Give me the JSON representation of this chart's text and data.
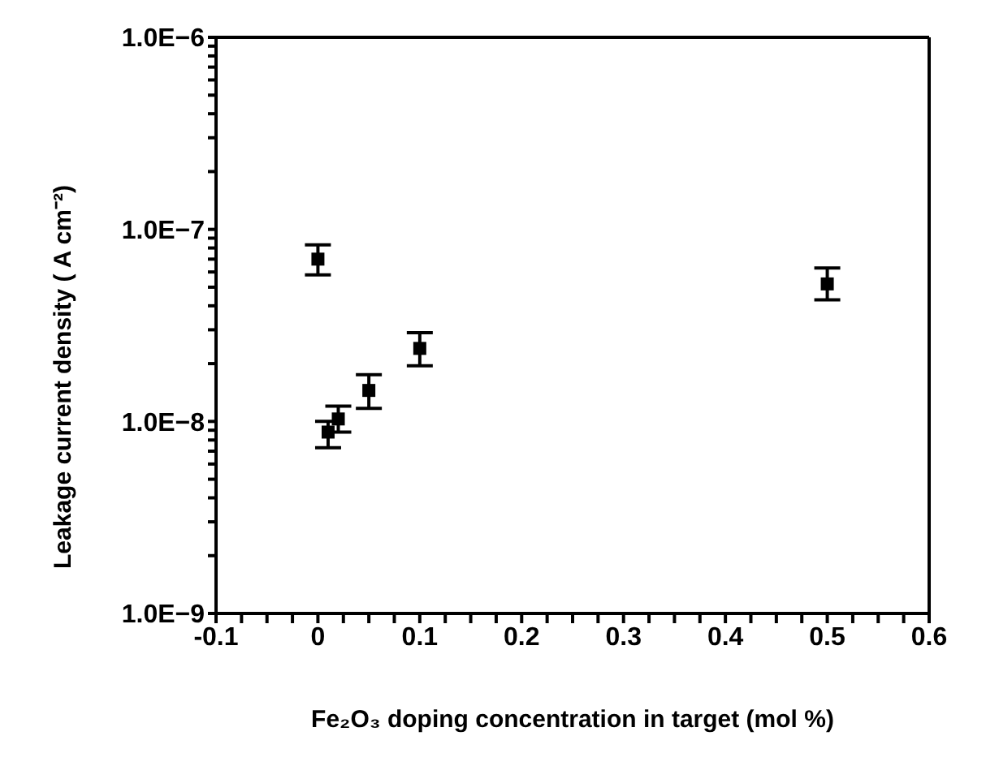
{
  "chart_data": {
    "type": "scatter",
    "xlabel": "Fe₂O₃ doping concentration in target (mol %)",
    "ylabel": "Leakage current density ( A cm⁻²)",
    "x": [
      0,
      0.01,
      0.02,
      0.05,
      0.1,
      0.5
    ],
    "series": [
      {
        "color": "#000000",
        "values": [
          7e-08,
          8.8e-09,
          1.03e-08,
          1.45e-08,
          2.4e-08,
          5.2e-08
        ],
        "errors": [
          [
            5.8e-08,
            8.3e-08
          ],
          [
            7.3e-09,
            1e-08
          ],
          [
            8.8e-09,
            1.2e-08
          ],
          [
            1.17e-08,
            1.75e-08
          ],
          [
            1.95e-08,
            2.9e-08
          ],
          [
            4.3e-08,
            6.3e-08
          ]
        ]
      }
    ],
    "log": "y",
    "marker": "square",
    "xlim": [
      -0.1,
      0.6
    ],
    "xticks": [
      -0.1,
      {
        "value": -0.075,
        "label": null
      },
      {
        "value": -0.05,
        "label": null
      },
      {
        "value": -0.025,
        "label": null
      },
      0,
      {
        "value": 0.025,
        "label": null
      },
      {
        "value": 0.05,
        "label": null
      },
      {
        "value": 0.075,
        "label": null
      },
      0.1,
      {
        "value": 0.125,
        "label": null
      },
      {
        "value": 0.15,
        "label": null
      },
      {
        "value": 0.175,
        "label": null
      },
      0.2,
      {
        "value": 0.225,
        "label": null
      },
      {
        "value": 0.25,
        "label": null
      },
      {
        "value": 0.275,
        "label": null
      },
      0.3,
      {
        "value": 0.325,
        "label": null
      },
      {
        "value": 0.35,
        "label": null
      },
      {
        "value": 0.375,
        "label": null
      },
      0.4,
      {
        "value": 0.425,
        "label": null
      },
      {
        "value": 0.45,
        "label": null
      },
      {
        "value": 0.475,
        "label": null
      },
      0.5,
      {
        "value": 0.525,
        "label": null
      },
      {
        "value": 0.55,
        "label": null
      },
      {
        "value": 0.575,
        "label": null
      },
      0.6
    ],
    "ylim": [
      1e-09,
      1e-06
    ],
    "yticks": [
      {
        "value": 1e-09,
        "label": "1.0E−9"
      },
      {
        "value": 2e-09,
        "label": null
      },
      {
        "value": 3e-09,
        "label": null
      },
      {
        "value": 4e-09,
        "label": null
      },
      {
        "value": 5e-09,
        "label": null
      },
      {
        "value": 6e-09,
        "label": null
      },
      {
        "value": 7e-09,
        "label": null
      },
      {
        "value": 8e-09,
        "label": null
      },
      {
        "value": 9e-09,
        "label": null
      },
      {
        "value": 1e-08,
        "label": "1.0E−8"
      },
      {
        "value": 2e-08,
        "label": null
      },
      {
        "value": 3e-08,
        "label": null
      },
      {
        "value": 4e-08,
        "label": null
      },
      {
        "value": 5e-08,
        "label": null
      },
      {
        "value": 6e-08,
        "label": null
      },
      {
        "value": 7e-08,
        "label": null
      },
      {
        "value": 8e-08,
        "label": null
      },
      {
        "value": 9e-08,
        "label": null
      },
      {
        "value": 1e-07,
        "label": "1.0E−7"
      },
      {
        "value": 2e-07,
        "label": null
      },
      {
        "value": 3e-07,
        "label": null
      },
      {
        "value": 4e-07,
        "label": null
      },
      {
        "value": 5e-07,
        "label": null
      },
      {
        "value": 6e-07,
        "label": null
      },
      {
        "value": 7e-07,
        "label": null
      },
      {
        "value": 8e-07,
        "label": null
      },
      {
        "value": 9e-07,
        "label": null
      },
      {
        "value": 1e-06,
        "label": "1.0E−6"
      }
    ]
  }
}
